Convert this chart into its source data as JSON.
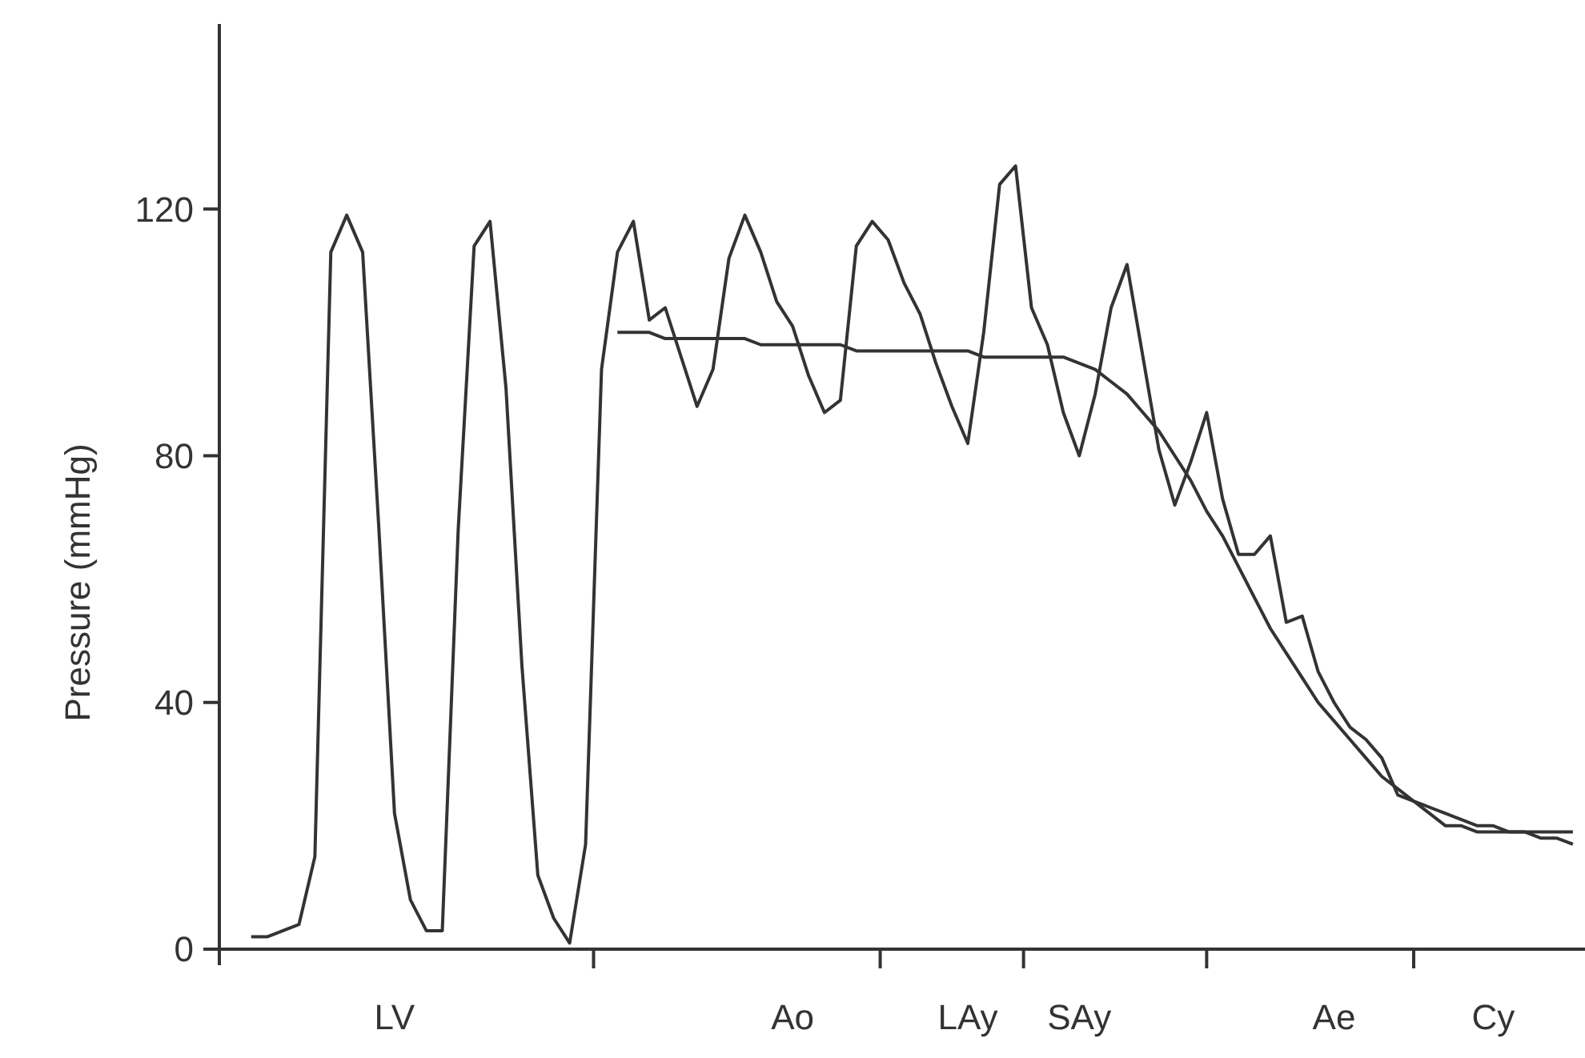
{
  "chart_data": {
    "type": "line",
    "ylabel": "Pressure (mmHg)",
    "ylim": [
      0,
      150
    ],
    "yticks": [
      0,
      40,
      80,
      120
    ],
    "categories": [
      null,
      null,
      null,
      null,
      null,
      null,
      null,
      null,
      null,
      null,
      null,
      "LV",
      null,
      null,
      null,
      null,
      null,
      null,
      null,
      null,
      null,
      null,
      null,
      null,
      null,
      null,
      null,
      null,
      null,
      null,
      null,
      null,
      null,
      null,
      null,
      null,
      "Ao",
      null,
      null,
      null,
      null,
      null,
      null,
      null,
      null,
      null,
      null,
      "LAy",
      null,
      null,
      null,
      null,
      null,
      null,
      "SAy",
      null,
      null,
      null,
      null,
      null,
      null,
      null,
      null,
      null,
      null,
      null,
      null,
      null,
      null,
      null,
      "Ae",
      null,
      null,
      null,
      null,
      null,
      null,
      null,
      null,
      null,
      "Cy",
      null,
      null,
      null,
      null,
      null
    ],
    "grid": false,
    "marker": "none",
    "line_style": "solid",
    "series": [
      {
        "color": "#333333",
        "values": [
          null,
          null,
          2,
          2,
          3,
          4,
          15,
          113,
          119,
          113,
          69,
          22,
          8,
          3,
          3,
          68,
          114,
          118,
          91,
          46,
          12,
          5,
          1,
          17,
          94,
          113,
          118,
          102,
          104,
          96,
          88,
          94,
          112,
          119,
          113,
          105,
          101,
          93,
          87,
          89,
          114,
          118,
          115,
          108,
          103,
          95,
          88,
          82,
          100,
          124,
          127,
          104,
          98,
          87,
          80,
          90,
          104,
          111,
          96,
          81,
          72,
          79,
          87,
          73,
          64,
          64,
          67,
          53,
          54,
          45,
          40,
          36,
          34,
          31,
          25,
          24,
          22,
          20,
          20,
          19,
          19,
          19,
          19,
          19,
          19,
          19
        ]
      },
      {
        "color": "#333333",
        "values": [
          null,
          null,
          null,
          null,
          null,
          null,
          null,
          null,
          null,
          null,
          null,
          null,
          null,
          null,
          null,
          null,
          null,
          null,
          null,
          null,
          null,
          null,
          null,
          null,
          null,
          100,
          100,
          100,
          99,
          99,
          99,
          99,
          99,
          99,
          98,
          98,
          98,
          98,
          98,
          98,
          97,
          97,
          97,
          97,
          97,
          97,
          97,
          97,
          96,
          96,
          96,
          96,
          96,
          96,
          95,
          94,
          92,
          90,
          87,
          84,
          80,
          76,
          71,
          67,
          62,
          57,
          52,
          48,
          44,
          40,
          37,
          34,
          31,
          28,
          26,
          24,
          23,
          22,
          21,
          20,
          20,
          19,
          19,
          18,
          18,
          17
        ]
      }
    ]
  }
}
